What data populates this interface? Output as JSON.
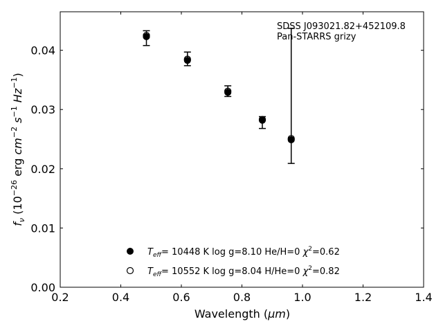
{
  "chart_data": {
    "type": "scatter",
    "xlabel_main": "Wavelength (",
    "xlabel_unit": "μm",
    "xlabel_close": ")",
    "ylabel": {
      "f": "f",
      "nu": "ν",
      "open": " (10",
      "exp1": "−26",
      "erg": " erg ",
      "cm": "cm",
      "exp2": "−2",
      "s": " s",
      "exp3": "−1",
      "hz": " Hz",
      "exp4": "−1",
      "close": ")"
    },
    "xlim": [
      0.2,
      1.4
    ],
    "ylim": [
      0.0,
      0.0465
    ],
    "x_ticks": [
      0.2,
      0.4,
      0.6,
      0.8,
      1.0,
      1.2,
      1.4
    ],
    "x_tick_labels": [
      "0.2",
      "0.4",
      "0.6",
      "0.8",
      "1.0",
      "1.2",
      "1.4"
    ],
    "y_ticks": [
      0.0,
      0.01,
      0.02,
      0.03,
      0.04
    ],
    "y_tick_labels": [
      "0.00",
      "0.01",
      "0.02",
      "0.03",
      "0.04"
    ],
    "annotation": [
      "SDSS J093021.82+452109.8",
      "Pan-STARRS grizy"
    ],
    "observed": {
      "x": [
        0.4846,
        0.6201,
        0.7535,
        0.8674,
        0.9628
      ],
      "y": [
        0.0423,
        0.0384,
        0.0331,
        0.0278,
        0.0251
      ],
      "err_low": [
        0.0408,
        0.0374,
        0.0322,
        0.0268,
        0.0209
      ],
      "err_high": [
        0.0433,
        0.0397,
        0.034,
        0.0288,
        0.0437
      ]
    },
    "series": [
      {
        "marker": "filled",
        "label_t": "T",
        "label_sub": "eff",
        "label_main": "= 10448 K  log g=8.10  He/H=0  ",
        "label_chi": "χ",
        "label_chi_exp": "2",
        "label_end": "=0.62",
        "x": [
          0.4846,
          0.6201,
          0.7535,
          0.8674,
          0.9628
        ],
        "y": [
          0.0423,
          0.0383,
          0.0329,
          0.0282,
          0.0249
        ]
      },
      {
        "marker": "open",
        "label_t": "T",
        "label_sub": "eff",
        "label_main": "= 10552 K  log g=8.04  H/He=0  ",
        "label_chi": "χ",
        "label_chi_exp": "2",
        "label_end": "=0.82",
        "x": [
          0.4846,
          0.6201,
          0.7535,
          0.8674,
          0.9628
        ],
        "y": [
          0.0425,
          0.0385,
          0.0331,
          0.0283,
          0.0251
        ]
      }
    ],
    "legend_position": "lower-center",
    "grid": false
  }
}
